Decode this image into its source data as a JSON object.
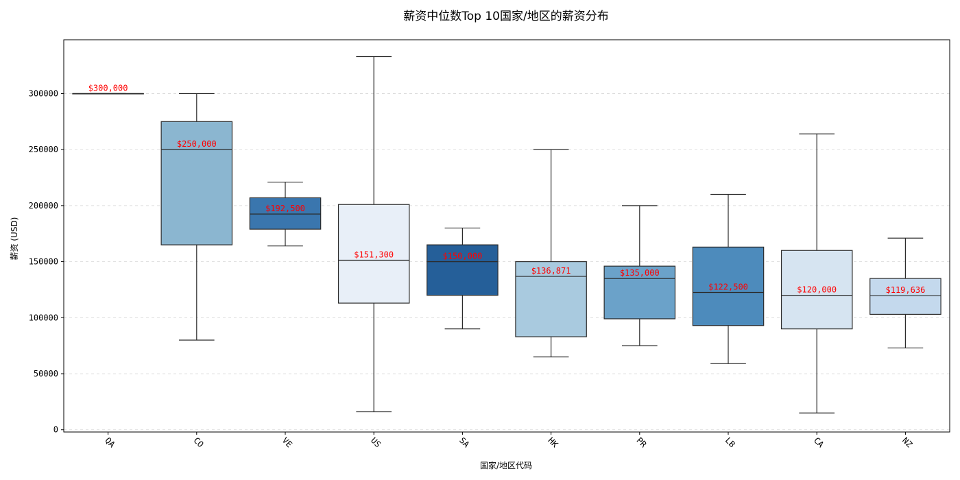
{
  "chart_data": {
    "type": "box",
    "title": "薪资中位数Top 10国家/地区的薪资分布",
    "xlabel": "国家/地区代码",
    "ylabel": "薪资 (USD)",
    "ylim": [
      -2000,
      348000
    ],
    "yticks": [
      0,
      50000,
      100000,
      150000,
      200000,
      250000,
      300000
    ],
    "grid": "horizontal dashed",
    "median_label_color": "#ff0000",
    "categories": [
      {
        "code": "QA",
        "min": 300000,
        "q1": 300000,
        "median": 300000,
        "q3": 300000,
        "max": 300000,
        "median_label": "$300,000",
        "color": "#1f5f9e"
      },
      {
        "code": "CO",
        "min": 80000,
        "q1": 165000,
        "median": 250000,
        "q3": 275000,
        "max": 300000,
        "median_label": "$250,000",
        "color": "#8bb6d0"
      },
      {
        "code": "VE",
        "min": 164000,
        "q1": 179000,
        "median": 192500,
        "q3": 207000,
        "max": 221000,
        "median_label": "$192,500",
        "color": "#3a76ae"
      },
      {
        "code": "US",
        "min": 16000,
        "q1": 113000,
        "median": 151300,
        "q3": 201000,
        "max": 333000,
        "median_label": "$151,300",
        "color": "#e8eff8"
      },
      {
        "code": "SA",
        "min": 90000,
        "q1": 120000,
        "median": 150000,
        "q3": 165000,
        "max": 180000,
        "median_label": "$150,000",
        "color": "#255f99"
      },
      {
        "code": "HK",
        "min": 65000,
        "q1": 83000,
        "median": 136871,
        "q3": 150000,
        "max": 250000,
        "median_label": "$136,871",
        "color": "#a9cadf"
      },
      {
        "code": "PR",
        "min": 75000,
        "q1": 99000,
        "median": 135000,
        "q3": 146000,
        "max": 200000,
        "median_label": "$135,000",
        "color": "#6ba2c9"
      },
      {
        "code": "LB",
        "min": 59000,
        "q1": 93000,
        "median": 122500,
        "q3": 163000,
        "max": 210000,
        "median_label": "$122,500",
        "color": "#4d8bbc"
      },
      {
        "code": "CA",
        "min": 15000,
        "q1": 90000,
        "median": 120000,
        "q3": 160000,
        "max": 264000,
        "median_label": "$120,000",
        "color": "#d6e4f1"
      },
      {
        "code": "NZ",
        "min": 73000,
        "q1": 103000,
        "median": 119636,
        "q3": 135000,
        "max": 171000,
        "median_label": "$119,636",
        "color": "#c4d9ed"
      }
    ]
  }
}
